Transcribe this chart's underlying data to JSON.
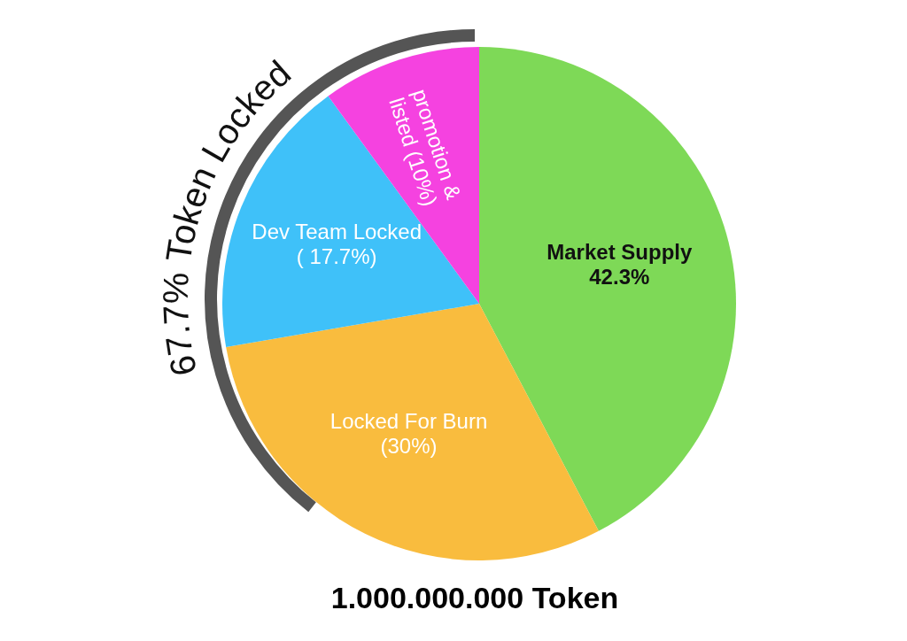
{
  "chart_data": {
    "type": "pie",
    "title": "1.000.000.000 Token",
    "categories": [
      "Market Supply",
      "Locked For Burn",
      "Dev Team Locked",
      "promotion & listed"
    ],
    "values": [
      42.3,
      30,
      17.7,
      10
    ],
    "value_labels": [
      "42.3%",
      "(30%)",
      "( 17.7%)",
      "(10%)"
    ],
    "colors": [
      "#7ed957",
      "#f9bc3e",
      "#3fc1f9",
      "#f542e0"
    ],
    "annotations": [
      "67.7% Token Locked"
    ],
    "legend": false
  }
}
